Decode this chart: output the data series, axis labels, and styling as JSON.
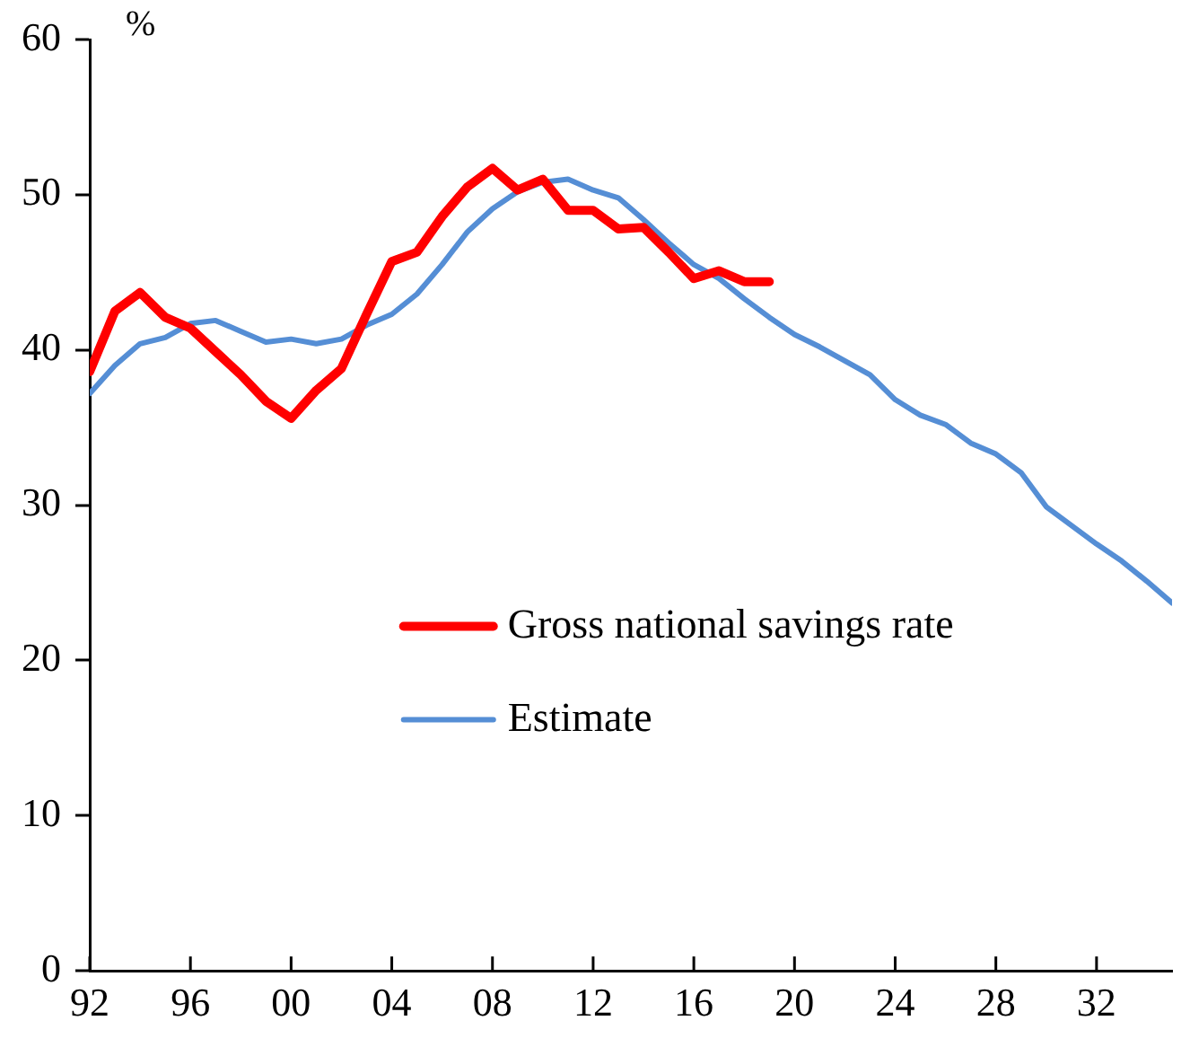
{
  "chart_data": {
    "type": "line",
    "ylabel": "%",
    "xlim": [
      1992,
      2035
    ],
    "xticks": [
      {
        "value": 1992,
        "label": "92"
      },
      {
        "value": 1996,
        "label": "96"
      },
      {
        "value": 2000,
        "label": "00"
      },
      {
        "value": 2004,
        "label": "04"
      },
      {
        "value": 2008,
        "label": "08"
      },
      {
        "value": 2012,
        "label": "12"
      },
      {
        "value": 2016,
        "label": "16"
      },
      {
        "value": 2020,
        "label": "20"
      },
      {
        "value": 2024,
        "label": "24"
      },
      {
        "value": 2028,
        "label": "28"
      },
      {
        "value": 2032,
        "label": "32"
      }
    ],
    "ylim": [
      0,
      60
    ],
    "yticks": [
      0,
      10,
      20,
      30,
      40,
      50,
      60
    ],
    "grid": false,
    "legend": "right",
    "marker": "none",
    "line_style": "solid",
    "series": [
      {
        "name": "Gross national savings rate",
        "color": "#ff0000",
        "x": [
          1992,
          1993,
          1994,
          1995,
          1996,
          1997,
          1998,
          1999,
          2000,
          2001,
          2002,
          2003,
          2004,
          2005,
          2006,
          2007,
          2008,
          2009,
          2010,
          2011,
          2012,
          2013,
          2014,
          2015,
          2016,
          2017,
          2018,
          2019
        ],
        "values": [
          38.6,
          42.5,
          43.7,
          42.1,
          41.4,
          39.9,
          38.4,
          36.7,
          35.6,
          37.4,
          38.8,
          42.3,
          45.7,
          46.3,
          48.6,
          50.5,
          51.7,
          50.3,
          51.0,
          49.0,
          49.0,
          47.8,
          47.9,
          46.3,
          44.6,
          45.1,
          44.4,
          44.4
        ]
      },
      {
        "name": "Estimate",
        "color": "#558ed5",
        "x": [
          1992,
          1993,
          1994,
          1995,
          1996,
          1997,
          1998,
          1999,
          2000,
          2001,
          2002,
          2003,
          2004,
          2005,
          2006,
          2007,
          2008,
          2009,
          2010,
          2011,
          2012,
          2013,
          2014,
          2015,
          2016,
          2017,
          2018,
          2019,
          2020,
          2021,
          2022,
          2023,
          2024,
          2025,
          2026,
          2027,
          2028,
          2029,
          2030,
          2031,
          2032,
          2033,
          2034,
          2035
        ],
        "values": [
          37.2,
          39.0,
          40.4,
          40.8,
          41.7,
          41.9,
          41.2,
          40.5,
          40.7,
          40.4,
          40.7,
          41.6,
          42.3,
          43.6,
          45.5,
          47.6,
          49.1,
          50.2,
          50.8,
          51.0,
          50.3,
          49.8,
          48.4,
          46.9,
          45.5,
          44.6,
          43.3,
          42.1,
          41.0,
          40.2,
          39.3,
          38.4,
          36.8,
          35.8,
          35.2,
          34.0,
          33.3,
          32.1,
          29.9,
          28.7,
          27.5,
          26.4,
          25.1,
          23.7
        ]
      }
    ]
  }
}
